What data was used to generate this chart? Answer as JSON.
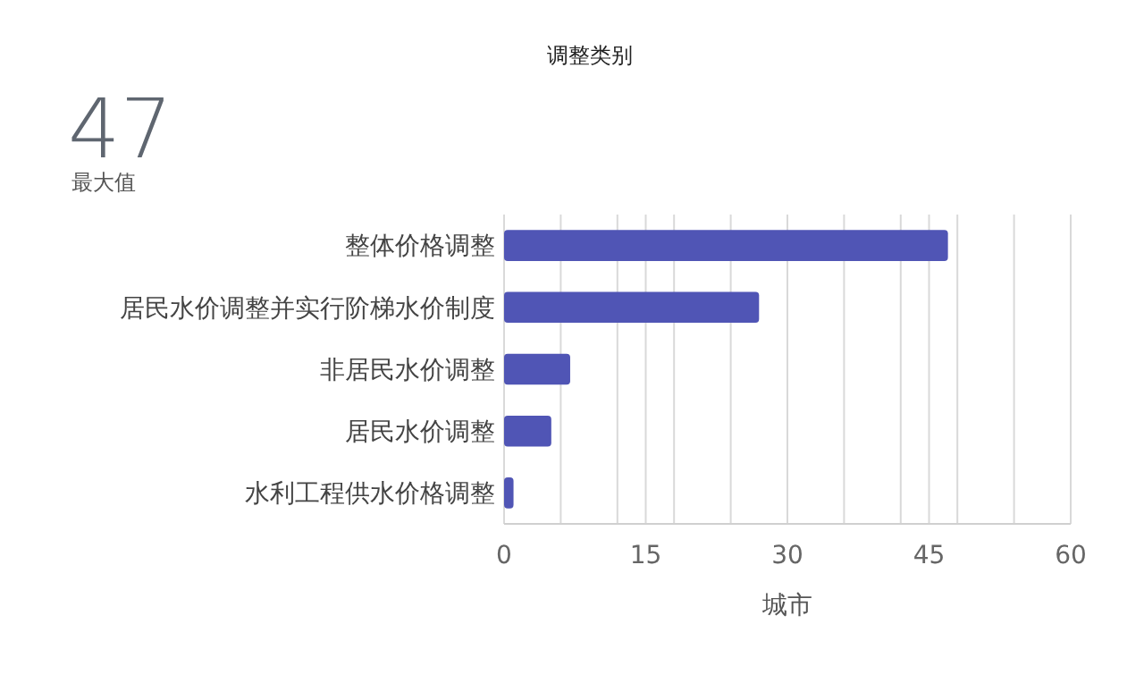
{
  "chart_data": {
    "type": "bar",
    "orientation": "horizontal",
    "title": "调整类别",
    "xlabel": "城市",
    "categories": [
      "整体价格调整",
      "居民水价调整并实行阶梯水价制度",
      "非居民水价调整",
      "居民水价调整",
      "水利工程供水价格调整"
    ],
    "values": [
      47,
      27,
      7,
      5,
      1
    ],
    "color": "#5055b5",
    "xlim": [
      0,
      60
    ],
    "xticks": [
      0,
      {
        "value": 6,
        "label": null
      },
      {
        "value": 12,
        "label": null
      },
      15,
      {
        "value": 18,
        "label": null
      },
      {
        "value": 24,
        "label": null
      },
      30,
      {
        "value": 36,
        "label": null
      },
      {
        "value": 42,
        "label": null
      },
      45,
      {
        "value": 48,
        "label": null
      },
      {
        "value": 54,
        "label": null
      },
      60
    ],
    "grid": "x",
    "annotations": [
      "47",
      "最大值"
    ]
  }
}
